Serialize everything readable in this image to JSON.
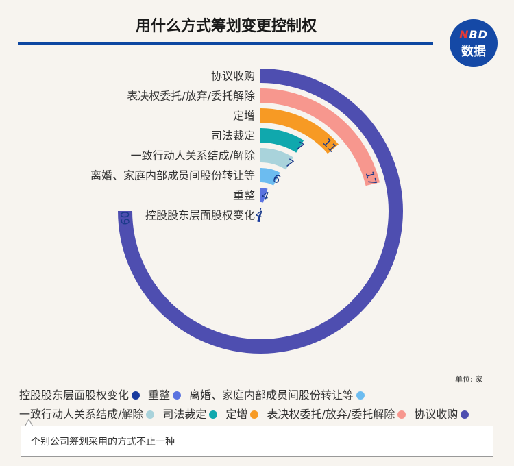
{
  "title": "用什么方式筹划变更控制权",
  "logo": {
    "line1_a": "N",
    "line1_b": "BD",
    "line2": "数据"
  },
  "unit": "单位: 家",
  "note": "个别公司筹划采用的方式不止一种",
  "chart_data": {
    "type": "radial-bar",
    "max_value": 60,
    "categories": [
      "协议收购",
      "表决权委托/放弃/委托解除",
      "定增",
      "司法裁定",
      "一致行动人关系结成/解除",
      "离婚、家庭内部成员间股份转让等",
      "重整",
      "控股股东层面股权变化"
    ],
    "values": [
      60,
      17,
      11,
      7,
      7,
      6,
      4,
      4
    ],
    "colors": [
      "#4e4eb0",
      "#f7978e",
      "#f79a24",
      "#10a8ad",
      "#a9d3db",
      "#6cbcf0",
      "#5b73e0",
      "#183a9e"
    ],
    "legend": {
      "position": "bottom",
      "order": [
        "控股股东层面股权变化",
        "重整",
        "离婚、家庭内部成员间股份转让等",
        "一致行动人关系结成/解除",
        "司法裁定",
        "定增",
        "表决权委托/放弃/委托解除",
        "协议收购"
      ]
    }
  }
}
